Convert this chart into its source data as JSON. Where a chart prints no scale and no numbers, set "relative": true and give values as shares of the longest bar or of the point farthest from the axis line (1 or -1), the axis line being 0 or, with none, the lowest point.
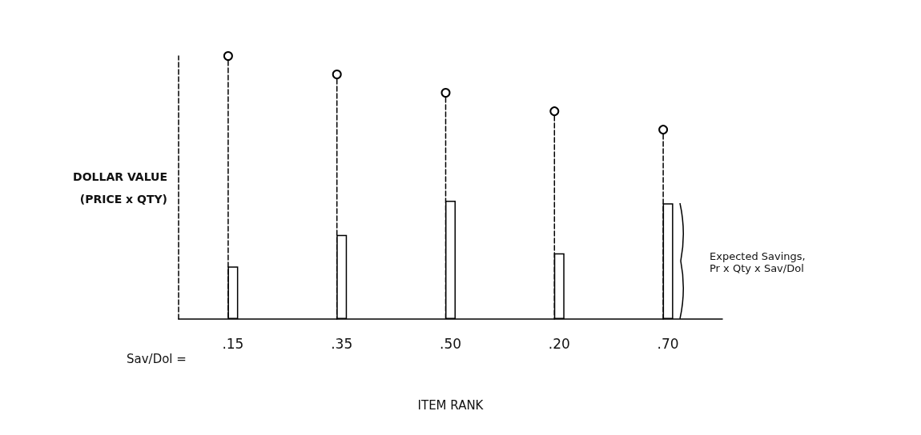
{
  "chart_data": {
    "type": "bar",
    "relative": true,
    "ylabel": "DOLLAR VALUE\n(PRICE x QTY)",
    "xlabel": "ITEM RANK",
    "categories": [
      ".15",
      ".35",
      ".50",
      ".20",
      ".70"
    ],
    "series": [
      {
        "type": "lollipop",
        "color": "#000000",
        "values": [
          1,
          0.93,
          0.86,
          0.79,
          0.72
        ]
      },
      {
        "color": "#ffffff",
        "values": [
          0.2,
          0.32,
          0.45,
          0.25,
          0.44
        ]
      }
    ],
    "marker": "circle",
    "line_style": "dashed",
    "grid": false,
    "tick_labels": "x",
    "annotations": [
      "Sav/Dol =",
      "Expected Savings,\nPr x Qty x Sav/Dol"
    ]
  }
}
